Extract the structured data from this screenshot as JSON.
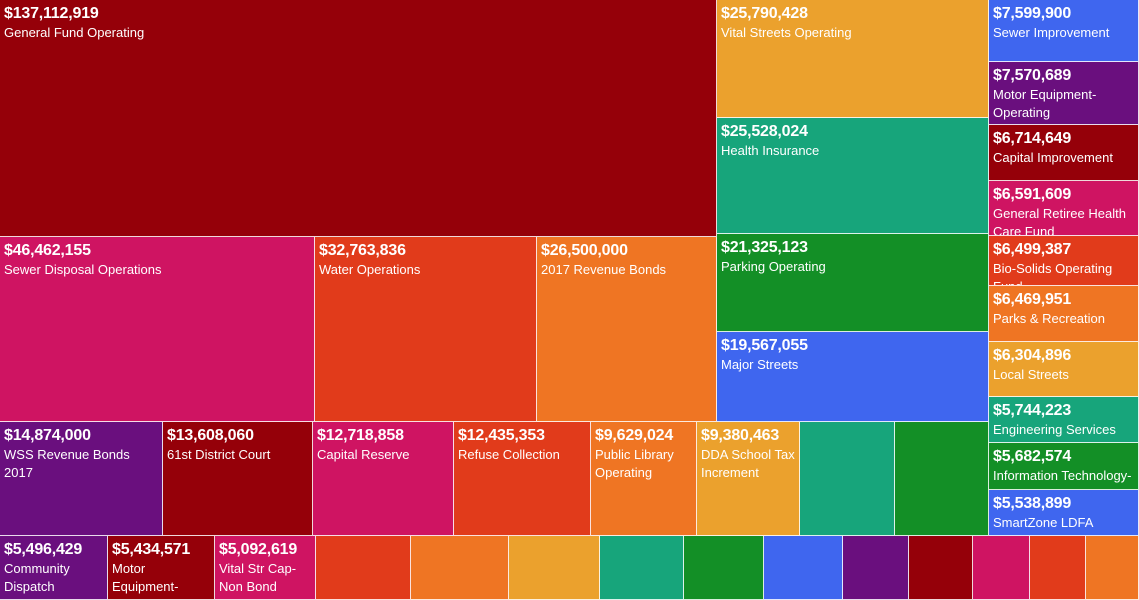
{
  "palette": {
    "darkred": "#950009",
    "magenta": "#cf1462",
    "redorange": "#e13b1b",
    "orange": "#ef7523",
    "gold": "#eba12d",
    "teal": "#17a57b",
    "green": "#138f26",
    "blue": "#3f66ef",
    "purple": "#6a0f7e"
  },
  "chart_data": {
    "type": "treemap",
    "items": [
      {
        "amount": "$137,112,919",
        "label": "General Fund Operating",
        "value": 137112919,
        "color": "darkred"
      },
      {
        "amount": "$25,790,428",
        "label": "Vital Streets Operating",
        "value": 25790428,
        "color": "gold"
      },
      {
        "amount": "$25,528,024",
        "label": "Health Insurance",
        "value": 25528024,
        "color": "teal"
      },
      {
        "amount": "$7,599,900",
        "label": "Sewer Improvement",
        "value": 7599900,
        "color": "blue"
      },
      {
        "amount": "$7,570,689",
        "label": "Motor Equipment-Operating",
        "value": 7570689,
        "color": "purple"
      },
      {
        "amount": "$6,714,649",
        "label": "Capital Improvement",
        "value": 6714649,
        "color": "darkred"
      },
      {
        "amount": "$6,591,609",
        "label": "General Retiree Health Care Fund",
        "value": 6591609,
        "color": "magenta"
      },
      {
        "amount": "$46,462,155",
        "label": "Sewer Disposal Operations",
        "value": 46462155,
        "color": "magenta"
      },
      {
        "amount": "$32,763,836",
        "label": "Water Operations",
        "value": 32763836,
        "color": "redorange"
      },
      {
        "amount": "$26,500,000",
        "label": "2017 Revenue Bonds",
        "value": 26500000,
        "color": "orange"
      },
      {
        "amount": "$21,325,123",
        "label": "Parking Operating",
        "value": 21325123,
        "color": "green"
      },
      {
        "amount": "$6,499,387",
        "label": "Bio-Solids Operating Fund",
        "value": 6499387,
        "color": "redorange"
      },
      {
        "amount": "$6,469,951",
        "label": "Parks & Recreation",
        "value": 6469951,
        "color": "orange"
      },
      {
        "amount": "$19,567,055",
        "label": "Major Streets",
        "value": 19567055,
        "color": "blue"
      },
      {
        "amount": "$6,304,896",
        "label": "Local Streets",
        "value": 6304896,
        "color": "gold"
      },
      {
        "amount": "$5,744,223",
        "label": "Engineering Services",
        "value": 5744223,
        "color": "teal"
      },
      {
        "amount": "$14,874,000",
        "label": "WSS Revenue Bonds 2017",
        "value": 14874000,
        "color": "purple"
      },
      {
        "amount": "$13,608,060",
        "label": "61st District Court",
        "value": 13608060,
        "color": "darkred"
      },
      {
        "amount": "$12,718,858",
        "label": "Capital Reserve",
        "value": 12718858,
        "color": "magenta"
      },
      {
        "amount": "$12,435,353",
        "label": "Refuse Collection",
        "value": 12435353,
        "color": "redorange"
      },
      {
        "amount": "$9,629,024",
        "label": "Public Library Operating",
        "value": 9629024,
        "color": "orange"
      },
      {
        "amount": "$9,380,463",
        "label": "DDA School Tax Increment",
        "value": 9380463,
        "color": "gold"
      },
      {
        "amount": "",
        "label": "",
        "value": null,
        "color": "teal"
      },
      {
        "amount": "",
        "label": "",
        "value": null,
        "color": "green"
      },
      {
        "amount": "$5,682,574",
        "label": "Information Technology-",
        "value": 5682574,
        "color": "green"
      },
      {
        "amount": "$5,538,899",
        "label": "SmartZone LDFA",
        "value": 5538899,
        "color": "blue"
      },
      {
        "amount": "$5,496,429",
        "label": "Community Dispatch",
        "value": 5496429,
        "color": "purple"
      },
      {
        "amount": "$5,434,571",
        "label": "Motor Equipment-",
        "value": 5434571,
        "color": "darkred"
      },
      {
        "amount": "$5,092,619",
        "label": "Vital Str Cap-Non Bond",
        "value": 5092619,
        "color": "magenta"
      },
      {
        "amount": "",
        "label": "",
        "value": null,
        "color": "redorange"
      },
      {
        "amount": "",
        "label": "",
        "value": null,
        "color": "orange"
      },
      {
        "amount": "",
        "label": "",
        "value": null,
        "color": "gold"
      },
      {
        "amount": "",
        "label": "",
        "value": null,
        "color": "teal"
      },
      {
        "amount": "",
        "label": "",
        "value": null,
        "color": "green"
      },
      {
        "amount": "",
        "label": "",
        "value": null,
        "color": "blue"
      },
      {
        "amount": "",
        "label": "",
        "value": null,
        "color": "purple"
      },
      {
        "amount": "",
        "label": "",
        "value": null,
        "color": "darkred"
      },
      {
        "amount": "",
        "label": "",
        "value": null,
        "color": "magenta"
      },
      {
        "amount": "",
        "label": "",
        "value": null,
        "color": "redorange"
      },
      {
        "amount": "",
        "label": "",
        "value": null,
        "color": "orange"
      }
    ]
  }
}
